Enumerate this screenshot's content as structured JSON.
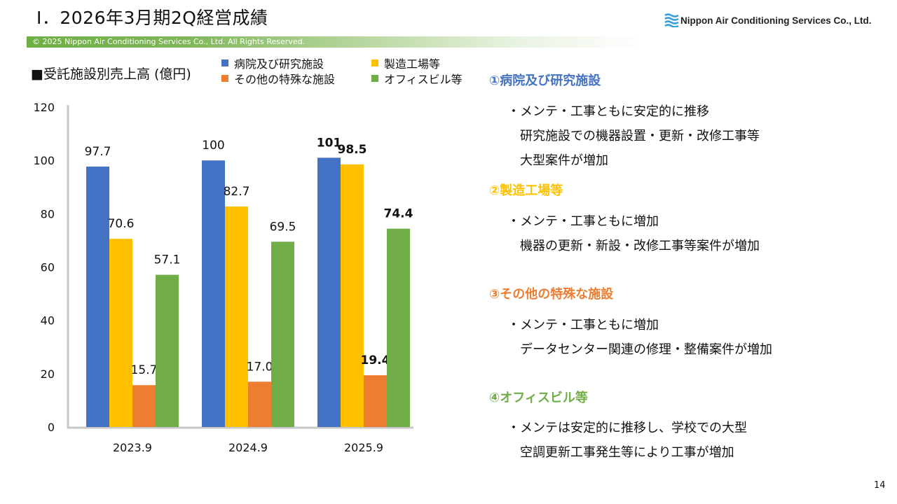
{
  "header": {
    "title": "Ⅰ．2026年3月期2Q経営成績",
    "company_logo_text": "Nippon Air Conditioning Services Co., Ltd.",
    "logo_icon": "wave-logo-icon",
    "copyright": "© 2025 Nippon Air Conditioning Services Co., Ltd. All Rights Reserved."
  },
  "chart_data": {
    "type": "bar",
    "title": "■受託施設別売上高 (億円)",
    "xlabel": "",
    "ylabel": "",
    "categories": [
      "2023.9",
      "2024.9",
      "2025.9"
    ],
    "ylim": [
      0,
      120
    ],
    "yticks": [
      0,
      20,
      40,
      60,
      80,
      100,
      120
    ],
    "grid": false,
    "legend_position": "top",
    "series": [
      {
        "name": "病院及び研究施設",
        "color": "#4472c4",
        "values": [
          97.7,
          100,
          101
        ],
        "labels": [
          "97.7",
          "100",
          "101"
        ],
        "bold_last": true
      },
      {
        "name": "製造工場等",
        "color": "#ffc000",
        "values": [
          70.6,
          82.7,
          98.5
        ],
        "labels": [
          "70.6",
          "82.7",
          "98.5"
        ],
        "bold_last": true
      },
      {
        "name": "その他の特殊な施設",
        "color": "#ed7d31",
        "values": [
          15.7,
          17.0,
          19.4
        ],
        "labels": [
          "15.7",
          "17.0",
          "19.4"
        ],
        "bold_last": true
      },
      {
        "name": "オフィスビル等",
        "color": "#70ad47",
        "values": [
          57.1,
          69.5,
          74.4
        ],
        "labels": [
          "57.1",
          "69.5",
          "74.4"
        ],
        "bold_last": true
      }
    ]
  },
  "sections": [
    {
      "heading": "①病院及び研究施設",
      "color": "#4472c4",
      "lines": [
        "・メンテ・工事ともに安定的に推移",
        "研究施設での機器設置・更新・改修工事等",
        "大型案件が増加"
      ]
    },
    {
      "heading": "②製造工場等",
      "color": "#ffc000",
      "lines": [
        "・メンテ・工事ともに増加",
        "機器の更新・新設・改修工事等案件が増加"
      ]
    },
    {
      "heading": "③その他の特殊な施設",
      "color": "#ed7d31",
      "lines": [
        "・メンテ・工事ともに増加",
        "データセンター関連の修理・整備案件が増加"
      ]
    },
    {
      "heading": "④オフィスビル等",
      "color": "#70ad47",
      "lines": [
        "・メンテは安定的に推移し、学校での大型",
        "空調更新工事発生等により工事が増加"
      ]
    }
  ],
  "footer": {
    "page_number": "14"
  }
}
